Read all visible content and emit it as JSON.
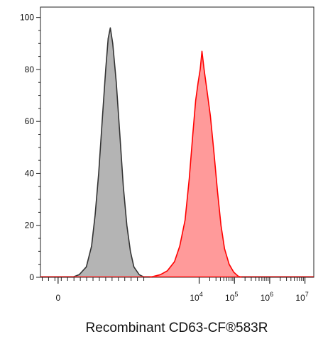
{
  "chart_data": {
    "type": "area",
    "title": "",
    "xlabel": "Recombinant CD63-CF®583R",
    "ylabel": "",
    "x_scale": "biexponential",
    "x_ticks": [
      {
        "base": "0",
        "exp": ""
      },
      {
        "base": "10",
        "exp": "4"
      },
      {
        "base": "10",
        "exp": "5"
      },
      {
        "base": "10",
        "exp": "6"
      },
      {
        "base": "10",
        "exp": "7"
      }
    ],
    "y_ticks": [
      "0",
      "20",
      "40",
      "60",
      "80",
      "100"
    ],
    "ylim": [
      0,
      104
    ],
    "grid": false,
    "legend": "none",
    "series": [
      {
        "role": "control",
        "fill": "#b4b4b4",
        "stroke": "#333333",
        "points": [
          [
            0.4,
            0
          ],
          [
            0.6,
            1
          ],
          [
            0.8,
            4
          ],
          [
            0.95,
            12
          ],
          [
            1.05,
            24
          ],
          [
            1.15,
            40
          ],
          [
            1.25,
            60
          ],
          [
            1.35,
            80
          ],
          [
            1.42,
            92
          ],
          [
            1.48,
            96
          ],
          [
            1.55,
            90
          ],
          [
            1.65,
            75
          ],
          [
            1.75,
            55
          ],
          [
            1.85,
            35
          ],
          [
            1.95,
            20
          ],
          [
            2.05,
            10
          ],
          [
            2.15,
            4
          ],
          [
            2.3,
            1
          ],
          [
            2.45,
            0
          ]
        ]
      },
      {
        "role": "stained",
        "fill": "#ff9a9a",
        "stroke": "#ff0000",
        "points": [
          [
            2.6,
            0
          ],
          [
            2.9,
            1
          ],
          [
            3.1,
            2.5
          ],
          [
            3.3,
            6
          ],
          [
            3.45,
            12
          ],
          [
            3.6,
            22
          ],
          [
            3.72,
            38
          ],
          [
            3.82,
            55
          ],
          [
            3.9,
            68
          ],
          [
            3.97,
            75
          ],
          [
            4.03,
            80
          ],
          [
            4.08,
            87
          ],
          [
            4.14,
            80
          ],
          [
            4.22,
            72
          ],
          [
            4.32,
            62
          ],
          [
            4.42,
            48
          ],
          [
            4.52,
            33
          ],
          [
            4.62,
            20
          ],
          [
            4.72,
            11
          ],
          [
            4.85,
            5
          ],
          [
            4.98,
            2
          ],
          [
            5.1,
            0.5
          ],
          [
            5.2,
            0
          ]
        ]
      }
    ]
  }
}
